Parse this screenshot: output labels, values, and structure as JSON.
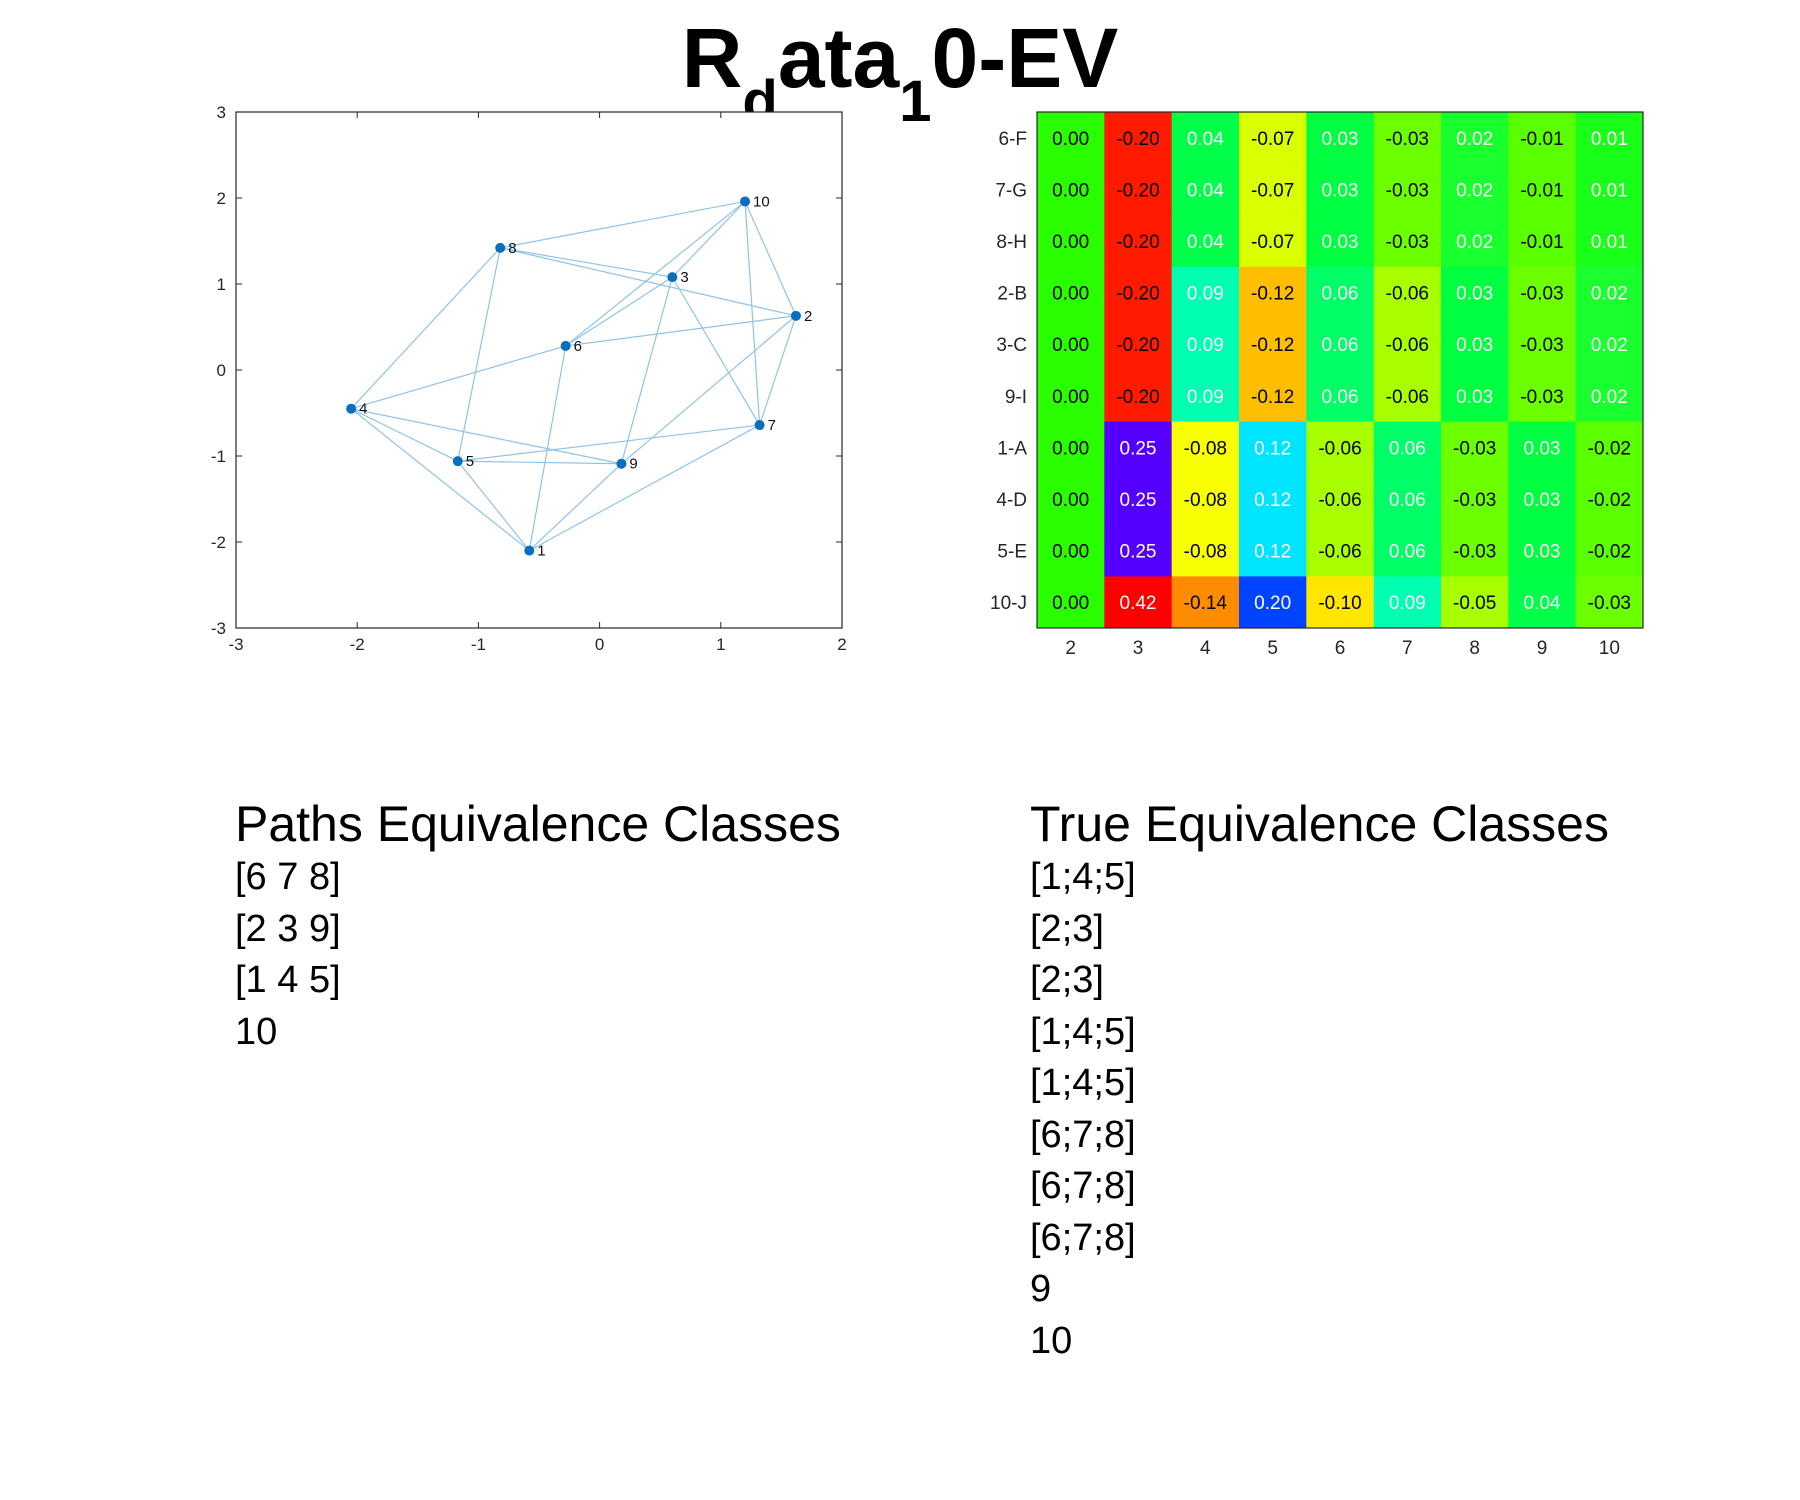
{
  "title": {
    "main": "R",
    "sub1": "d",
    "mid": "ata",
    "sub2": "1",
    "tail": "0-EV"
  },
  "chart_data": [
    {
      "type": "scatter",
      "xlim": [
        -3,
        2
      ],
      "ylim": [
        -3,
        3
      ],
      "xticks": [
        -3,
        -2,
        -1,
        0,
        1,
        2
      ],
      "yticks": [
        -3,
        -2,
        -1,
        0,
        1,
        2,
        3
      ],
      "nodes": [
        {
          "label": "1",
          "x": -0.58,
          "y": -2.1
        },
        {
          "label": "2",
          "x": 1.62,
          "y": 0.63
        },
        {
          "label": "3",
          "x": 0.6,
          "y": 1.08
        },
        {
          "label": "4",
          "x": -2.05,
          "y": -0.45
        },
        {
          "label": "5",
          "x": -1.17,
          "y": -1.06
        },
        {
          "label": "6",
          "x": -0.28,
          "y": 0.28
        },
        {
          "label": "7",
          "x": 1.32,
          "y": -0.64
        },
        {
          "label": "8",
          "x": -0.82,
          "y": 1.42
        },
        {
          "label": "9",
          "x": 0.18,
          "y": -1.09
        },
        {
          "label": "10",
          "x": 1.2,
          "y": 1.96
        }
      ],
      "edges": [
        [
          "8",
          "10"
        ],
        [
          "8",
          "3"
        ],
        [
          "8",
          "2"
        ],
        [
          "8",
          "4"
        ],
        [
          "8",
          "5"
        ],
        [
          "10",
          "6"
        ],
        [
          "10",
          "3"
        ],
        [
          "10",
          "7"
        ],
        [
          "10",
          "2"
        ],
        [
          "3",
          "6"
        ],
        [
          "3",
          "9"
        ],
        [
          "3",
          "7"
        ],
        [
          "2",
          "6"
        ],
        [
          "2",
          "7"
        ],
        [
          "2",
          "9"
        ],
        [
          "6",
          "1"
        ],
        [
          "4",
          "6"
        ],
        [
          "4",
          "5"
        ],
        [
          "4",
          "9"
        ],
        [
          "4",
          "1"
        ],
        [
          "5",
          "9"
        ],
        [
          "5",
          "7"
        ],
        [
          "5",
          "1"
        ],
        [
          "1",
          "9"
        ],
        [
          "1",
          "7"
        ]
      ],
      "colors": {
        "node": "#0a6fbf",
        "edge": "#90c2e8"
      }
    },
    {
      "type": "heatmap",
      "row_labels": [
        "6-F",
        "7-G",
        "8-H",
        "2-B",
        "3-C",
        "9-I",
        "1-A",
        "4-D",
        "5-E",
        "10-J"
      ],
      "col_labels": [
        "2",
        "3",
        "4",
        "5",
        "6",
        "7",
        "8",
        "9",
        "10"
      ],
      "values": [
        [
          "0.00",
          "-0.20",
          "0.04",
          "-0.07",
          "0.03",
          "-0.03",
          "0.02",
          "-0.01",
          "0.01"
        ],
        [
          "0.00",
          "-0.20",
          "0.04",
          "-0.07",
          "0.03",
          "-0.03",
          "0.02",
          "-0.01",
          "0.01"
        ],
        [
          "0.00",
          "-0.20",
          "0.04",
          "-0.07",
          "0.03",
          "-0.03",
          "0.02",
          "-0.01",
          "0.01"
        ],
        [
          "0.00",
          "-0.20",
          "0.09",
          "-0.12",
          "0.06",
          "-0.06",
          "0.03",
          "-0.03",
          "0.02"
        ],
        [
          "0.00",
          "-0.20",
          "0.09",
          "-0.12",
          "0.06",
          "-0.06",
          "0.03",
          "-0.03",
          "0.02"
        ],
        [
          "0.00",
          "-0.20",
          "0.09",
          "-0.12",
          "0.06",
          "-0.06",
          "0.03",
          "-0.03",
          "0.02"
        ],
        [
          "0.00",
          "0.25",
          "-0.08",
          "0.12",
          "-0.06",
          "0.06",
          "-0.03",
          "0.03",
          "-0.02"
        ],
        [
          "0.00",
          "0.25",
          "-0.08",
          "0.12",
          "-0.06",
          "0.06",
          "-0.03",
          "0.03",
          "-0.02"
        ],
        [
          "0.00",
          "0.25",
          "-0.08",
          "0.12",
          "-0.06",
          "0.06",
          "-0.03",
          "0.03",
          "-0.02"
        ],
        [
          "0.00",
          "0.42",
          "-0.14",
          "0.20",
          "-0.10",
          "0.09",
          "-0.05",
          "0.04",
          "-0.03"
        ]
      ],
      "colorscale": {
        "-0.20": "#ff1a00",
        "-0.14": "#ff8c00",
        "-0.12": "#ffbf00",
        "-0.10": "#ffe600",
        "-0.08": "#f7ff00",
        "-0.07": "#d9ff00",
        "-0.06": "#a8ff00",
        "-0.05": "#a8ff00",
        "-0.03": "#6cff00",
        "-0.02": "#5aff00",
        "-0.01": "#5aff00",
        "0.00": "#2aff00",
        "0.01": "#1aff1a",
        "0.02": "#1aff2e",
        "0.03": "#00ff40",
        "0.04": "#00ff48",
        "0.06": "#00ff66",
        "0.09": "#00ffb0",
        "0.12": "#00e5ff",
        "0.20": "#0044ff",
        "0.25": "#5500ff",
        "0.42": "#ff0000"
      },
      "text_colors": {
        "light": [
          "-0.20",
          "0.04",
          "0.03",
          "0.02",
          "0.01",
          "0.09",
          "0.06",
          "0.25",
          "0.12",
          "0.42",
          "0.20"
        ],
        "light_exceptions_dark_rows": []
      }
    }
  ],
  "paths": {
    "heading": "Paths Equivalence Classes",
    "items": [
      "[6 7 8]",
      "[2 3 9]",
      "[1 4 5]",
      "10"
    ]
  },
  "true_classes": {
    "heading": "True Equivalence Classes",
    "items": [
      "[1;4;5]",
      "[2;3]",
      "[2;3]",
      "[1;4;5]",
      "[1;4;5]",
      "[6;7;8]",
      "[6;7;8]",
      "[6;7;8]",
      "9",
      "10"
    ]
  }
}
